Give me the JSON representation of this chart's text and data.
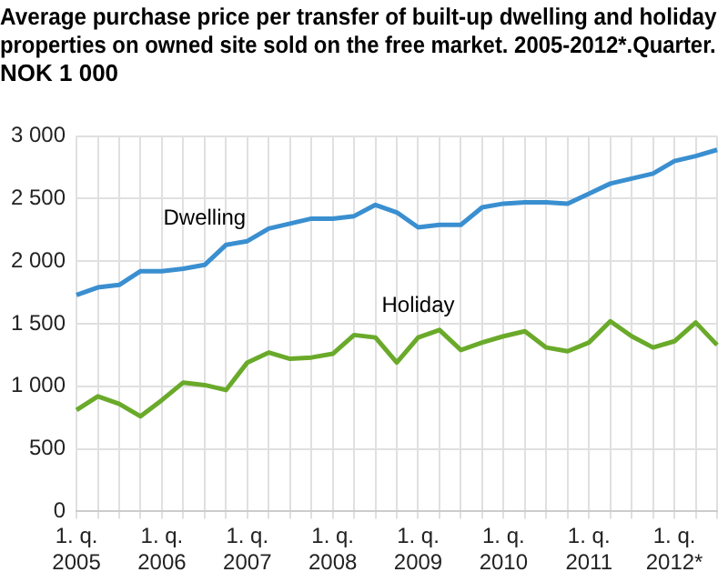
{
  "chart_data": {
    "type": "line",
    "title": "Average purchase price per transfer of built-up dwelling and holiday\nproperties on owned site sold on the free market. 2005-2012*.Quarter.\nNOK 1 000",
    "categories": [
      "1. q.\n2005",
      null,
      null,
      null,
      "1. q.\n2006",
      null,
      null,
      null,
      "1. q.\n2007",
      null,
      null,
      null,
      "1. q.\n2008",
      null,
      null,
      null,
      "1. q.\n2009",
      null,
      null,
      null,
      "1. q.\n2010",
      null,
      null,
      null,
      "1. q.\n2011",
      null,
      null,
      null,
      "1. q.\n2012*",
      null,
      null
    ],
    "series": [
      {
        "name": "Dwelling",
        "color": "#3a8fd0",
        "values": [
          1730,
          1790,
          1810,
          1920,
          1920,
          1940,
          1970,
          2130,
          2160,
          2260,
          2300,
          2340,
          2340,
          2360,
          2450,
          2390,
          2270,
          2290,
          2290,
          2430,
          2460,
          2470,
          2470,
          2460,
          2540,
          2620,
          2660,
          2700,
          2800,
          2840,
          2890
        ]
      },
      {
        "name": "Holiday",
        "color": "#6aaa2a",
        "values": [
          810,
          920,
          860,
          760,
          890,
          1030,
          1010,
          970,
          1190,
          1270,
          1220,
          1230,
          1260,
          1410,
          1390,
          1190,
          1390,
          1450,
          1290,
          1350,
          1400,
          1440,
          1310,
          1280,
          1350,
          1520,
          1400,
          1310,
          1360,
          1510,
          1330
        ]
      }
    ],
    "ylim": [
      0,
      3000
    ],
    "yticks": [
      0,
      500,
      {
        "value": 1000,
        "label": "1 000"
      },
      {
        "value": 1500,
        "label": "1 500"
      },
      {
        "value": 2000,
        "label": "2 000"
      },
      {
        "value": 2500,
        "label": "2 500"
      },
      {
        "value": 3000,
        "label": "3 000"
      }
    ],
    "grid": true,
    "legend": false,
    "marker": "none",
    "line_style": "solid"
  }
}
